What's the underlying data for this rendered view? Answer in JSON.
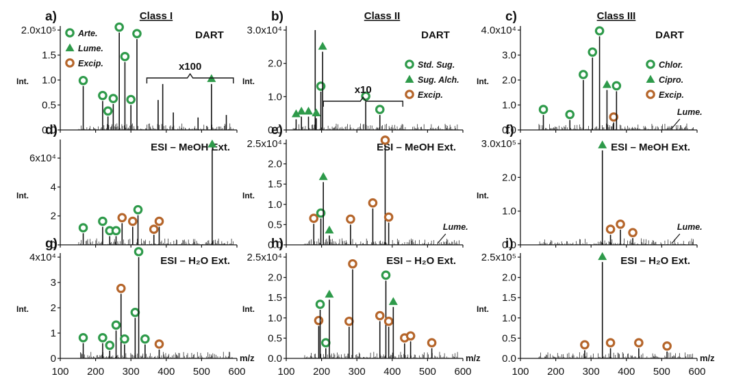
{
  "colors": {
    "green": "#2e9a4a",
    "brown": "#b5652a",
    "line": "#111111"
  },
  "x_tick_labels": [
    "100",
    "200",
    "300",
    "400",
    "500",
    "600"
  ],
  "x_unit": "m/z",
  "y_label": "Int.",
  "chart_data": [
    {
      "type": "bar",
      "id": "a",
      "panel": "a)",
      "class_label": "Class I",
      "method": "DART",
      "xlim": [
        100,
        600
      ],
      "ylim": [
        0,
        200000
      ],
      "y_ticks": [
        "0.0",
        "0.5",
        "1.0",
        "1.5",
        "2.0x10⁵"
      ],
      "y_tick_values": [
        0,
        50000,
        100000,
        150000,
        200000
      ],
      "legend": [
        {
          "marker": "circle",
          "color": "green",
          "label": "Arte."
        },
        {
          "marker": "triangle",
          "color": "green",
          "label": "Lume."
        },
        {
          "marker": "circle",
          "color": "brown",
          "label": "Excip."
        }
      ],
      "annotations": [
        {
          "text": "x100",
          "type": "bracket",
          "x_from": 345,
          "x_to": 590
        }
      ],
      "peaks": [
        {
          "x": 165,
          "y": 88000,
          "marker": "circle",
          "color": "green"
        },
        {
          "x": 220,
          "y": 58000,
          "marker": "circle",
          "color": "green"
        },
        {
          "x": 235,
          "y": 27000,
          "marker": "circle",
          "color": "green"
        },
        {
          "x": 250,
          "y": 52000,
          "marker": "circle",
          "color": "green"
        },
        {
          "x": 267,
          "y": 195000,
          "marker": "circle",
          "color": "green"
        },
        {
          "x": 283,
          "y": 136000,
          "marker": "circle",
          "color": "green"
        },
        {
          "x": 300,
          "y": 50000,
          "marker": "circle",
          "color": "green"
        },
        {
          "x": 317,
          "y": 182000,
          "marker": "circle",
          "color": "green"
        },
        {
          "x": 377,
          "y": 60000
        },
        {
          "x": 390,
          "y": 92000
        },
        {
          "x": 420,
          "y": 35000
        },
        {
          "x": 490,
          "y": 25000
        },
        {
          "x": 528,
          "y": 92000,
          "marker": "triangle",
          "color": "green"
        },
        {
          "x": 570,
          "y": 30000
        }
      ]
    },
    {
      "type": "bar",
      "id": "b",
      "panel": "b)",
      "class_label": "Class II",
      "method": "DART",
      "xlim": [
        100,
        600
      ],
      "ylim": [
        0,
        30000
      ],
      "y_ticks": [
        "0.0",
        "1.0",
        "2.0",
        "3.0x10⁴"
      ],
      "y_tick_values": [
        0,
        10000,
        20000,
        30000
      ],
      "legend": [
        {
          "marker": "circle",
          "color": "green",
          "label": "Std. Sug."
        },
        {
          "marker": "triangle",
          "color": "green",
          "label": "Sug. Alch."
        },
        {
          "marker": "circle",
          "color": "brown",
          "label": "Excip."
        }
      ],
      "annotations": [
        {
          "text": "x10",
          "type": "bracket",
          "x_from": 205,
          "x_to": 430
        }
      ],
      "peaks": [
        {
          "x": 128,
          "y": 3200,
          "marker": "triangle",
          "color": "green"
        },
        {
          "x": 143,
          "y": 4000,
          "marker": "triangle",
          "color": "green"
        },
        {
          "x": 163,
          "y": 4000,
          "marker": "triangle",
          "color": "green"
        },
        {
          "x": 182,
          "y": 30000
        },
        {
          "x": 185,
          "y": 3500,
          "marker": "triangle",
          "color": "green"
        },
        {
          "x": 198,
          "y": 11500,
          "marker": "circle",
          "color": "green"
        },
        {
          "x": 203,
          "y": 23500,
          "marker": "triangle",
          "color": "green"
        },
        {
          "x": 325,
          "y": 8500,
          "marker": "circle",
          "color": "green"
        },
        {
          "x": 365,
          "y": 4500,
          "marker": "circle",
          "color": "green"
        }
      ]
    },
    {
      "type": "bar",
      "id": "c",
      "panel": "c)",
      "class_label": "Class III",
      "method": "DART",
      "xlim": [
        100,
        600
      ],
      "ylim": [
        0,
        40000
      ],
      "y_ticks": [
        "0.0",
        "1.0",
        "2.0",
        "3.0",
        "4.0x10⁴"
      ],
      "y_tick_values": [
        0,
        10000,
        20000,
        30000,
        40000
      ],
      "legend": [
        {
          "marker": "circle",
          "color": "green",
          "label": "Chlor."
        },
        {
          "marker": "triangle",
          "color": "green",
          "label": "Cipro."
        },
        {
          "marker": "circle",
          "color": "brown",
          "label": "Excip."
        }
      ],
      "annotations": [
        {
          "text": "Lume.",
          "type": "pointer",
          "x": 528
        }
      ],
      "peaks": [
        {
          "x": 165,
          "y": 6000,
          "marker": "circle",
          "color": "green"
        },
        {
          "x": 240,
          "y": 4000,
          "marker": "circle",
          "color": "green"
        },
        {
          "x": 278,
          "y": 20000,
          "marker": "circle",
          "color": "green"
        },
        {
          "x": 304,
          "y": 29000,
          "marker": "circle",
          "color": "green"
        },
        {
          "x": 324,
          "y": 37500,
          "marker": "circle",
          "color": "green"
        },
        {
          "x": 345,
          "y": 16000,
          "marker": "triangle",
          "color": "green"
        },
        {
          "x": 364,
          "y": 3000,
          "marker": "circle",
          "color": "brown"
        },
        {
          "x": 372,
          "y": 15500,
          "marker": "circle",
          "color": "green"
        }
      ]
    },
    {
      "type": "bar",
      "id": "d",
      "panel": "d)",
      "method": "ESI – MeOH Ext.",
      "xlim": [
        100,
        600
      ],
      "ylim": [
        0,
        70000
      ],
      "y_ticks": [
        "0",
        "2",
        "4",
        "6x10⁴"
      ],
      "y_tick_values": [
        0,
        20000,
        40000,
        60000
      ],
      "peaks": [
        {
          "x": 165,
          "y": 8000,
          "marker": "circle",
          "color": "green"
        },
        {
          "x": 220,
          "y": 12500,
          "marker": "circle",
          "color": "green"
        },
        {
          "x": 240,
          "y": 6000,
          "marker": "circle",
          "color": "green"
        },
        {
          "x": 258,
          "y": 6000,
          "marker": "circle",
          "color": "green"
        },
        {
          "x": 275,
          "y": 15000,
          "marker": "circle",
          "color": "brown"
        },
        {
          "x": 305,
          "y": 12500,
          "marker": "circle",
          "color": "brown"
        },
        {
          "x": 320,
          "y": 20500,
          "marker": "circle",
          "color": "green"
        },
        {
          "x": 365,
          "y": 7000,
          "marker": "circle",
          "color": "brown"
        },
        {
          "x": 380,
          "y": 12500,
          "marker": "circle",
          "color": "brown"
        },
        {
          "x": 530,
          "y": 66000,
          "marker": "triangle",
          "color": "green"
        }
      ]
    },
    {
      "type": "bar",
      "id": "e",
      "panel": "e)",
      "method": "ESI – MeOH Ext.",
      "xlim": [
        100,
        600
      ],
      "ylim": [
        0,
        25000
      ],
      "y_ticks": [
        "0.0",
        "0.5",
        "1.0",
        "1.5",
        "2.0",
        "2.5x10⁴"
      ],
      "y_tick_values": [
        0,
        5000,
        10000,
        15000,
        20000,
        25000
      ],
      "annotations": [
        {
          "text": "Lume.",
          "type": "pointer",
          "x": 528
        }
      ],
      "peaks": [
        {
          "x": 178,
          "y": 5200,
          "marker": "circle",
          "color": "brown"
        },
        {
          "x": 198,
          "y": 6500,
          "marker": "circle",
          "color": "green"
        },
        {
          "x": 205,
          "y": 15500,
          "marker": "triangle",
          "color": "green"
        },
        {
          "x": 222,
          "y": 2300,
          "marker": "triangle",
          "color": "green"
        },
        {
          "x": 282,
          "y": 5000,
          "marker": "circle",
          "color": "brown"
        },
        {
          "x": 345,
          "y": 9000,
          "marker": "circle",
          "color": "brown"
        },
        {
          "x": 380,
          "y": 24500,
          "marker": "circle",
          "color": "brown"
        },
        {
          "x": 390,
          "y": 5500,
          "marker": "circle",
          "color": "brown"
        }
      ]
    },
    {
      "type": "bar",
      "id": "f",
      "panel": "f)",
      "method": "ESI – MeOH Ext.",
      "xlim": [
        100,
        600
      ],
      "ylim": [
        0,
        300000
      ],
      "y_ticks": [
        "0.0",
        "1.0",
        "2.0",
        "3.0x10⁵"
      ],
      "y_tick_values": [
        0,
        100000,
        200000,
        300000
      ],
      "annotations": [
        {
          "text": "Lume.",
          "type": "pointer",
          "x": 528
        }
      ],
      "peaks": [
        {
          "x": 332,
          "y": 280000,
          "marker": "triangle",
          "color": "green"
        },
        {
          "x": 355,
          "y": 30000,
          "marker": "circle",
          "color": "brown"
        },
        {
          "x": 383,
          "y": 45000,
          "marker": "circle",
          "color": "brown"
        },
        {
          "x": 418,
          "y": 20000,
          "marker": "circle",
          "color": "brown"
        }
      ]
    },
    {
      "type": "bar",
      "id": "g",
      "panel": "g)",
      "method": "ESI – H₂O Ext.",
      "xlim": [
        100,
        600
      ],
      "ylim": [
        0,
        40000
      ],
      "y_ticks": [
        "0",
        "1",
        "2",
        "3",
        "4x10⁴"
      ],
      "y_tick_values": [
        0,
        10000,
        20000,
        30000,
        40000
      ],
      "peaks": [
        {
          "x": 165,
          "y": 6000,
          "marker": "circle",
          "color": "green"
        },
        {
          "x": 220,
          "y": 6000,
          "marker": "circle",
          "color": "green"
        },
        {
          "x": 240,
          "y": 3000,
          "marker": "circle",
          "color": "green"
        },
        {
          "x": 258,
          "y": 11000,
          "marker": "circle",
          "color": "green"
        },
        {
          "x": 272,
          "y": 25500,
          "marker": "circle",
          "color": "brown"
        },
        {
          "x": 282,
          "y": 5500,
          "marker": "circle",
          "color": "green"
        },
        {
          "x": 312,
          "y": 16000,
          "marker": "circle",
          "color": "green"
        },
        {
          "x": 322,
          "y": 40000,
          "marker": "circle",
          "color": "green"
        },
        {
          "x": 340,
          "y": 5500,
          "marker": "circle",
          "color": "green"
        },
        {
          "x": 380,
          "y": 3500,
          "marker": "circle",
          "color": "brown"
        }
      ]
    },
    {
      "type": "bar",
      "id": "h",
      "panel": "h)",
      "method": "ESI – H₂O Ext.",
      "xlim": [
        100,
        600
      ],
      "ylim": [
        0,
        25000
      ],
      "y_ticks": [
        "0.0",
        "0.5",
        "1.0",
        "1.5",
        "2.0",
        "2.5x10⁴"
      ],
      "y_tick_values": [
        0,
        5000,
        10000,
        15000,
        20000,
        25000
      ],
      "peaks": [
        {
          "x": 192,
          "y": 8000,
          "marker": "circle",
          "color": "brown"
        },
        {
          "x": 196,
          "y": 12000,
          "marker": "circle",
          "color": "green"
        },
        {
          "x": 212,
          "y": 2500,
          "marker": "circle",
          "color": "green"
        },
        {
          "x": 222,
          "y": 14500,
          "marker": "triangle",
          "color": "green"
        },
        {
          "x": 278,
          "y": 7800,
          "marker": "circle",
          "color": "brown"
        },
        {
          "x": 288,
          "y": 22000,
          "marker": "circle",
          "color": "brown"
        },
        {
          "x": 365,
          "y": 9200,
          "marker": "circle",
          "color": "brown"
        },
        {
          "x": 382,
          "y": 19200,
          "marker": "circle",
          "color": "green"
        },
        {
          "x": 390,
          "y": 7800,
          "marker": "circle",
          "color": "brown"
        },
        {
          "x": 403,
          "y": 12700,
          "marker": "triangle",
          "color": "green"
        },
        {
          "x": 435,
          "y": 3700,
          "marker": "circle",
          "color": "brown"
        },
        {
          "x": 452,
          "y": 4200,
          "marker": "circle",
          "color": "brown"
        },
        {
          "x": 512,
          "y": 2500,
          "marker": "circle",
          "color": "brown"
        }
      ]
    },
    {
      "type": "bar",
      "id": "i",
      "panel": "i)",
      "method": "ESI – H₂O Ext.",
      "xlim": [
        100,
        600
      ],
      "ylim": [
        0,
        250000
      ],
      "y_ticks": [
        "0.0",
        "0.5",
        "1.0",
        "1.5",
        "2.0",
        "2.5x10⁵"
      ],
      "y_tick_values": [
        0,
        50000,
        100000,
        150000,
        200000,
        250000
      ],
      "peaks": [
        {
          "x": 282,
          "y": 20000,
          "marker": "circle",
          "color": "brown"
        },
        {
          "x": 332,
          "y": 238000,
          "marker": "triangle",
          "color": "green"
        },
        {
          "x": 355,
          "y": 25000,
          "marker": "circle",
          "color": "brown"
        },
        {
          "x": 435,
          "y": 25000,
          "marker": "circle",
          "color": "brown"
        },
        {
          "x": 515,
          "y": 17000,
          "marker": "circle",
          "color": "brown"
        }
      ]
    }
  ]
}
